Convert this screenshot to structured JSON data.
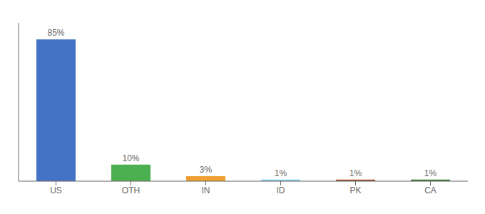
{
  "chart_data": {
    "type": "bar",
    "categories": [
      "US",
      "OTH",
      "IN",
      "ID",
      "PK",
      "CA"
    ],
    "values": [
      85,
      10,
      3,
      1,
      1,
      1
    ],
    "value_labels": [
      "85%",
      "10%",
      "3%",
      "1%",
      "1%",
      "1%"
    ],
    "colors": [
      "#4472c4",
      "#4caf50",
      "#f0a030",
      "#7ecfe0",
      "#a0522d",
      "#3a7a3a"
    ],
    "ylim": [
      0,
      95
    ],
    "data_labels": true,
    "tick_labels": "x",
    "grid": false
  }
}
